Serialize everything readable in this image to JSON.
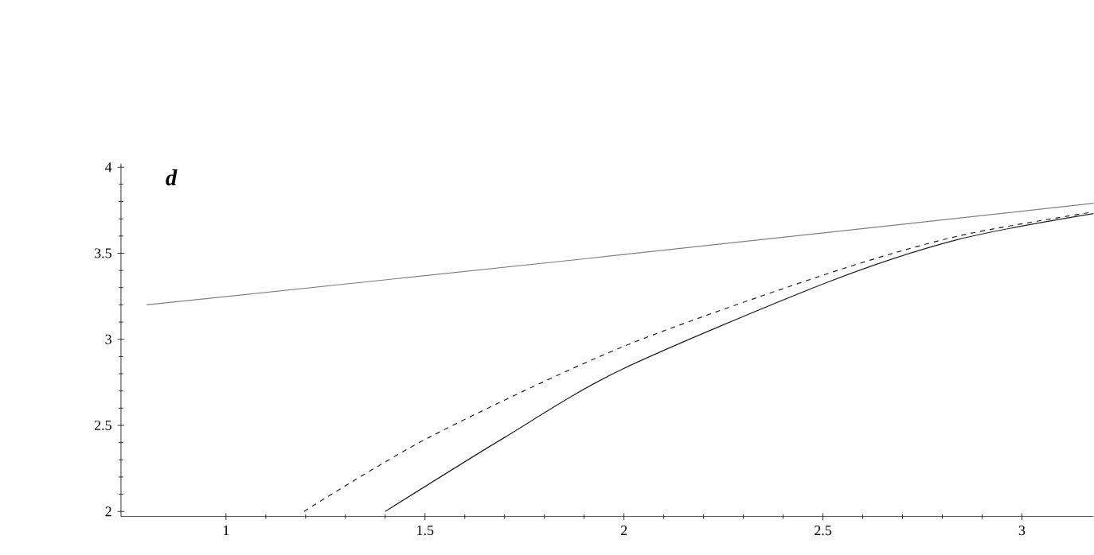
{
  "chart_data": {
    "type": "line",
    "annotations": [
      "**d**"
    ],
    "xlim": [
      0.736,
      3.18
    ],
    "ylim": [
      1.97,
      4.02
    ],
    "xticks": [
      1,
      1.5,
      2,
      2.5,
      3
    ],
    "yticks": [
      2,
      2.5,
      3,
      3.5,
      4
    ],
    "grid": false,
    "marker": "none",
    "series": [
      {
        "color": "#808080",
        "line_style": "solid",
        "x": [
          0.8,
          1.91,
          3.18
        ],
        "values": [
          3.2,
          3.47,
          3.79
        ]
      },
      {
        "color": "#202020",
        "line_style": "dashed",
        "x": [
          1.196,
          1.51,
          1.99,
          2.51,
          2.84,
          3.18
        ],
        "values": [
          2.0,
          2.43,
          2.95,
          3.38,
          3.6,
          3.74
        ]
      },
      {
        "color": "#202020",
        "line_style": "solid",
        "x": [
          1.4,
          1.7,
          1.99,
          2.51,
          2.84,
          3.18
        ],
        "values": [
          2.0,
          2.43,
          2.82,
          3.33,
          3.58,
          3.73
        ]
      }
    ]
  }
}
